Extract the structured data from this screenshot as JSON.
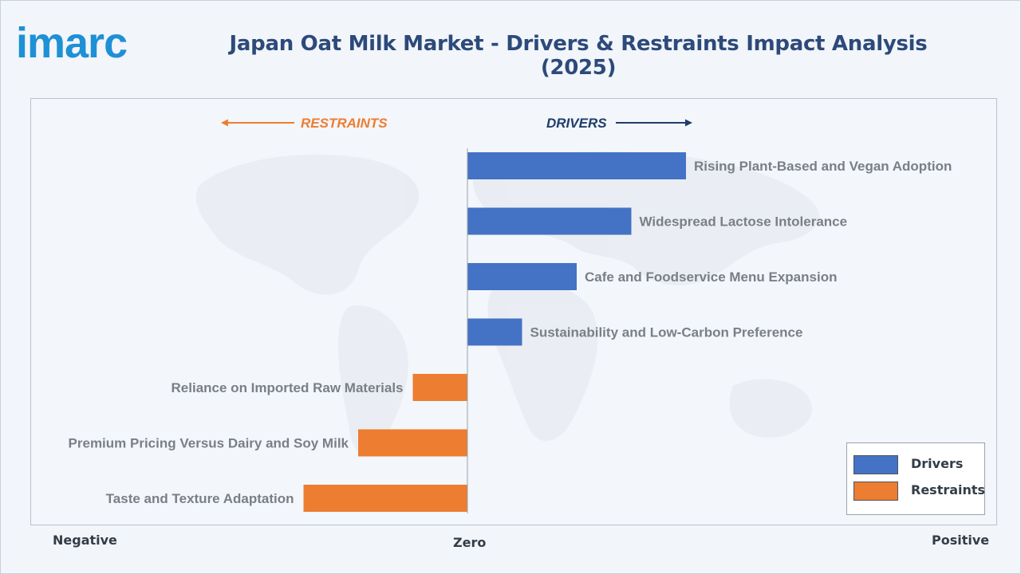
{
  "brand": {
    "logo_text": "imarc"
  },
  "page": {
    "title": "Japan Oat Milk Market - Drivers & Restraints Impact Analysis (2025)"
  },
  "axis": {
    "negative": "Negative",
    "zero": "Zero",
    "positive": "Positive"
  },
  "legend": {
    "drivers": "Drivers",
    "restraints": "Restraints"
  },
  "colors": {
    "drivers": "#4472c4",
    "restraints": "#ed7d31",
    "drivers_header": "#1f3d6b",
    "restraints_header": "#ed7d31",
    "label_text": "#7a7f86",
    "logo": "#1e90d6"
  },
  "chart_data": {
    "type": "bar",
    "orientation": "horizontal",
    "headers": {
      "restraints": "RESTRAINTS",
      "drivers": "DRIVERS"
    },
    "categories": [
      "Rising Plant-Based and Vegan Adoption",
      "Widespread Lactose Intolerance",
      "Cafe and Foodservice Menu Expansion",
      "Sustainability and Low-Carbon Preference",
      "Reliance on Imported Raw Materials",
      "Premium Pricing Versus Dairy and Soy Milk",
      "Taste and Texture Adaptation"
    ],
    "series": [
      {
        "name": "Drivers",
        "values": [
          4,
          3,
          2,
          1,
          null,
          null,
          null
        ]
      },
      {
        "name": "Restraints",
        "values": [
          null,
          null,
          null,
          null,
          -1,
          -2,
          -3
        ]
      }
    ],
    "xlim": [
      -8,
      8
    ],
    "grid": false,
    "legend_position": "bottom-right"
  }
}
